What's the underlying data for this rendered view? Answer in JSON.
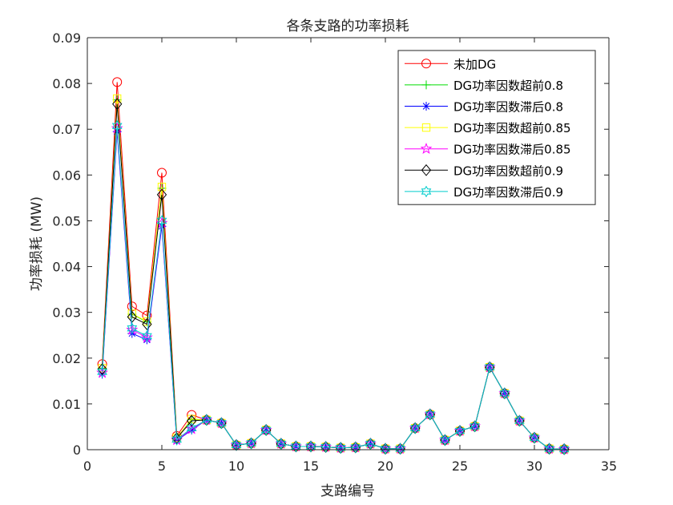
{
  "chart_data": {
    "type": "line",
    "title": "各条支路的功率损耗",
    "xlabel": "支路编号",
    "ylabel": "功率损耗 (MW)",
    "xlim": [
      0,
      35
    ],
    "ylim": [
      0,
      0.09
    ],
    "xticks": [
      0,
      5,
      10,
      15,
      20,
      25,
      30,
      35
    ],
    "xtick_labels": [
      "0",
      "5",
      "10",
      "15",
      "20",
      "25",
      "30",
      "35"
    ],
    "yticks": [
      0,
      0.01,
      0.02,
      0.03,
      0.04,
      0.05,
      0.06,
      0.07,
      0.08,
      0.09
    ],
    "ytick_labels": [
      "0",
      "0.01",
      "0.02",
      "0.03",
      "0.04",
      "0.05",
      "0.06",
      "0.07",
      "0.08",
      "0.09"
    ],
    "grid": false,
    "legend_position": "top-right",
    "x": [
      1,
      2,
      3,
      4,
      5,
      6,
      7,
      8,
      9,
      10,
      11,
      12,
      13,
      14,
      15,
      16,
      17,
      18,
      19,
      20,
      21,
      22,
      23,
      24,
      25,
      26,
      27,
      28,
      29,
      30,
      31,
      32
    ],
    "series": [
      {
        "name": "未加DG",
        "color": "#ff0000",
        "marker": "circle",
        "values": [
          0.0187,
          0.0803,
          0.0313,
          0.0293,
          0.0605,
          0.003,
          0.0076,
          0.0065,
          0.0058,
          0.001,
          0.0014,
          0.0043,
          0.0013,
          0.0007,
          0.0007,
          0.0006,
          0.0004,
          0.0005,
          0.0013,
          0.0002,
          0.0002,
          0.0047,
          0.0077,
          0.0021,
          0.0041,
          0.0051,
          0.018,
          0.0123,
          0.0063,
          0.0026,
          0.0002,
          0.0001
        ]
      },
      {
        "name": "DG功率因数超前0.8",
        "color": "#00dd00",
        "marker": "plus",
        "values": [
          0.0177,
          0.0764,
          0.0296,
          0.0279,
          0.0571,
          0.0026,
          0.0066,
          0.0065,
          0.0058,
          0.001,
          0.0014,
          0.0043,
          0.0013,
          0.0007,
          0.0007,
          0.0006,
          0.0004,
          0.0005,
          0.0013,
          0.0002,
          0.0002,
          0.0047,
          0.0077,
          0.0021,
          0.0041,
          0.0051,
          0.018,
          0.0123,
          0.0063,
          0.0026,
          0.0002,
          0.0001
        ]
      },
      {
        "name": "DG功率因数滞后0.8",
        "color": "#0000ff",
        "marker": "asterisk",
        "values": [
          0.0165,
          0.0695,
          0.0254,
          0.024,
          0.0488,
          0.002,
          0.0043,
          0.0065,
          0.0058,
          0.001,
          0.0014,
          0.0043,
          0.0013,
          0.0007,
          0.0007,
          0.0006,
          0.0004,
          0.0005,
          0.0013,
          0.0002,
          0.0002,
          0.0047,
          0.0077,
          0.0021,
          0.0041,
          0.0051,
          0.018,
          0.0123,
          0.0063,
          0.0026,
          0.0002,
          0.0001
        ]
      },
      {
        "name": "DG功率因数超前0.85",
        "color": "#ffff00",
        "marker": "square",
        "values": [
          0.0178,
          0.0767,
          0.0297,
          0.028,
          0.0574,
          0.0026,
          0.0067,
          0.0065,
          0.0058,
          0.001,
          0.0014,
          0.0043,
          0.0013,
          0.0007,
          0.0007,
          0.0006,
          0.0004,
          0.0005,
          0.0013,
          0.0002,
          0.0002,
          0.0047,
          0.0077,
          0.0021,
          0.0041,
          0.0051,
          0.018,
          0.0123,
          0.0063,
          0.0026,
          0.0002,
          0.0001
        ]
      },
      {
        "name": "DG功率因数滞后0.85",
        "color": "#ff00ff",
        "marker": "star",
        "values": [
          0.0168,
          0.0702,
          0.0262,
          0.0245,
          0.0495,
          0.0021,
          0.0045,
          0.0065,
          0.0058,
          0.001,
          0.0014,
          0.0043,
          0.0013,
          0.0007,
          0.0007,
          0.0006,
          0.0004,
          0.0005,
          0.0013,
          0.0002,
          0.0002,
          0.0047,
          0.0077,
          0.0021,
          0.0041,
          0.0051,
          0.018,
          0.0123,
          0.0063,
          0.0026,
          0.0002,
          0.0001
        ]
      },
      {
        "name": "DG功率因数超前0.9",
        "color": "#000000",
        "marker": "diamond",
        "values": [
          0.0176,
          0.0755,
          0.029,
          0.0274,
          0.0557,
          0.0025,
          0.0063,
          0.0065,
          0.0058,
          0.001,
          0.0014,
          0.0043,
          0.0013,
          0.0007,
          0.0007,
          0.0006,
          0.0004,
          0.0005,
          0.0013,
          0.0002,
          0.0002,
          0.0047,
          0.0077,
          0.0021,
          0.0041,
          0.0051,
          0.018,
          0.0123,
          0.0063,
          0.0026,
          0.0002,
          0.0001
        ]
      },
      {
        "name": "DG功率因数滞后0.9",
        "color": "#00cccc",
        "marker": "hexagram",
        "values": [
          0.017,
          0.0707,
          0.0265,
          0.0248,
          0.05,
          0.0022,
          0.0047,
          0.0065,
          0.0058,
          0.001,
          0.0014,
          0.0043,
          0.0013,
          0.0007,
          0.0007,
          0.0006,
          0.0004,
          0.0005,
          0.0013,
          0.0002,
          0.0002,
          0.0047,
          0.0077,
          0.0021,
          0.0041,
          0.0051,
          0.018,
          0.0123,
          0.0063,
          0.0026,
          0.0002,
          0.0001
        ]
      }
    ]
  }
}
